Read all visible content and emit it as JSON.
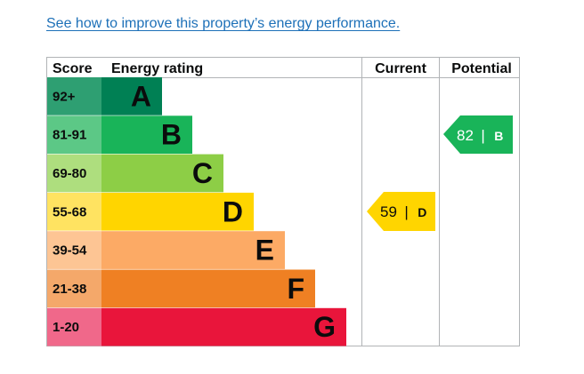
{
  "link": {
    "improve_text": "See how to improve this property’s energy performance."
  },
  "table": {
    "headers": {
      "score": "Score",
      "rating": "Energy rating",
      "current": "Current",
      "potential": "Potential"
    },
    "bands": [
      {
        "score": "92+",
        "letter": "A",
        "color": "#008054",
        "score_color": "#2e9f72"
      },
      {
        "score": "81-91",
        "letter": "B",
        "color": "#19b459",
        "score_color": "#5cc886"
      },
      {
        "score": "69-80",
        "letter": "C",
        "color": "#8dce46",
        "score_color": "#aede7e"
      },
      {
        "score": "55-68",
        "letter": "D",
        "color": "#ffd500",
        "score_color": "#ffe361"
      },
      {
        "score": "39-54",
        "letter": "E",
        "color": "#fcaa65",
        "score_color": "#fdc594"
      },
      {
        "score": "21-38",
        "letter": "F",
        "color": "#ef8023",
        "score_color": "#f4a86a"
      },
      {
        "score": "1-20",
        "letter": "G",
        "color": "#e9153b",
        "score_color": "#f0688a"
      }
    ],
    "current": {
      "value": "59",
      "separator": "|",
      "letter": "D",
      "color": "#ffd500",
      "text_color": "#0b0c0c"
    },
    "potential": {
      "value": "82",
      "separator": "|",
      "letter": "B",
      "color": "#19b459",
      "text_color": "#ffffff"
    }
  }
}
